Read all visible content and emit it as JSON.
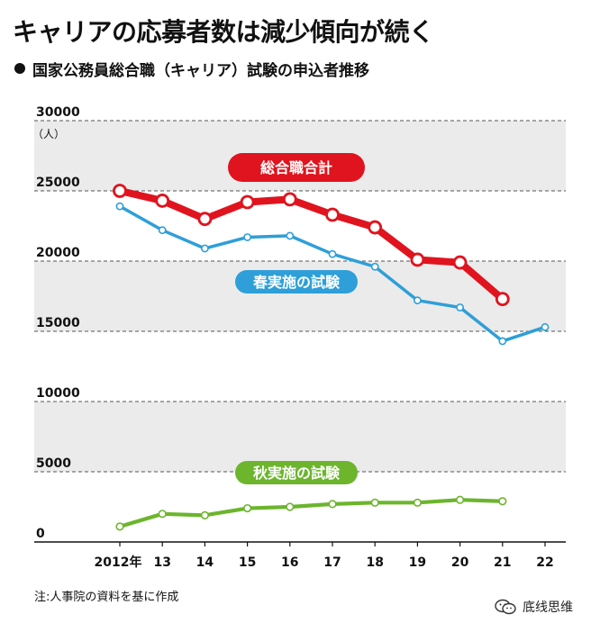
{
  "header": {
    "title": "キャリアの応募者数は減少傾向が続く",
    "subtitle": "国家公務員総合職（キャリア）試験の申込者推移"
  },
  "note": "注:人事院の資料を基に作成",
  "watermark": {
    "text": "底线思维",
    "icon": "wechat-icon"
  },
  "colors": {
    "total": "#e0141e",
    "spring": "#2e9fd8",
    "autumn": "#6cb52d",
    "band": "#ebebeb",
    "grid": "#555555"
  },
  "chart_data": {
    "type": "line",
    "title": "国家公務員総合職（キャリア）試験の申込者推移",
    "y_unit": "（人）",
    "ylim": [
      0,
      30000
    ],
    "y_ticks": [
      "0",
      "5000",
      "10000",
      "15000",
      "20000",
      "25000",
      "30000"
    ],
    "y_tick_values": [
      0,
      5000,
      10000,
      15000,
      20000,
      25000,
      30000
    ],
    "categories": [
      "2012年",
      "13",
      "14",
      "15",
      "16",
      "17",
      "18",
      "19",
      "20",
      "21",
      "22"
    ],
    "grid": true,
    "series": [
      {
        "name": "総合職合計",
        "color": "#e0141e",
        "values": [
          25000,
          24300,
          23000,
          24200,
          24400,
          23300,
          22400,
          20100,
          19900,
          17300,
          null
        ]
      },
      {
        "name": "春実施の試験",
        "color": "#2e9fd8",
        "values": [
          23900,
          22200,
          20900,
          21700,
          21800,
          20500,
          19600,
          17200,
          16700,
          14300,
          15300
        ]
      },
      {
        "name": "秋実施の試験",
        "color": "#6cb52d",
        "values": [
          1100,
          2000,
          1900,
          2400,
          2500,
          2700,
          2800,
          2800,
          3000,
          2900,
          null
        ]
      }
    ]
  }
}
